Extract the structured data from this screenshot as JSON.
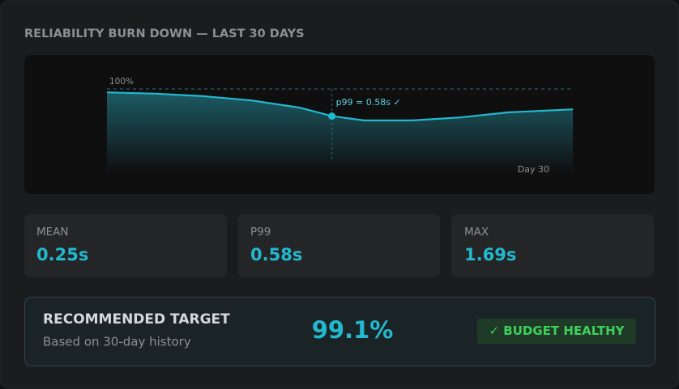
{
  "title": "RELIABILITY BURN DOWN — LAST 30 DAYS",
  "chart_data": {
    "type": "area",
    "x": [
      1,
      4,
      7,
      10,
      13,
      15,
      17,
      20,
      23,
      26,
      30
    ],
    "values": [
      99.2,
      98.9,
      98.3,
      97.3,
      95.6,
      93.6,
      92.6,
      92.6,
      93.3,
      94.5,
      95.2
    ],
    "color": "#22b9cf",
    "xlim": [
      1,
      30
    ],
    "ylim": [
      80,
      100
    ],
    "xticks": [
      {
        "value": 30,
        "label": "Day 30"
      }
    ],
    "yticks": [
      {
        "value": 100,
        "label": "100%"
      }
    ],
    "annotation": {
      "text": "p99 = 0.58s ✓",
      "x": 15
    }
  },
  "stats": [
    {
      "label": "MEAN",
      "value": "0.25s"
    },
    {
      "label": "P99",
      "value": "0.58s"
    },
    {
      "label": "MAX",
      "value": "1.69s"
    }
  ],
  "target": {
    "title": "RECOMMENDED TARGET",
    "subtitle": "Based on 30-day history",
    "value": "99.1%",
    "badge": "✓ BUDGET HEALTHY"
  }
}
